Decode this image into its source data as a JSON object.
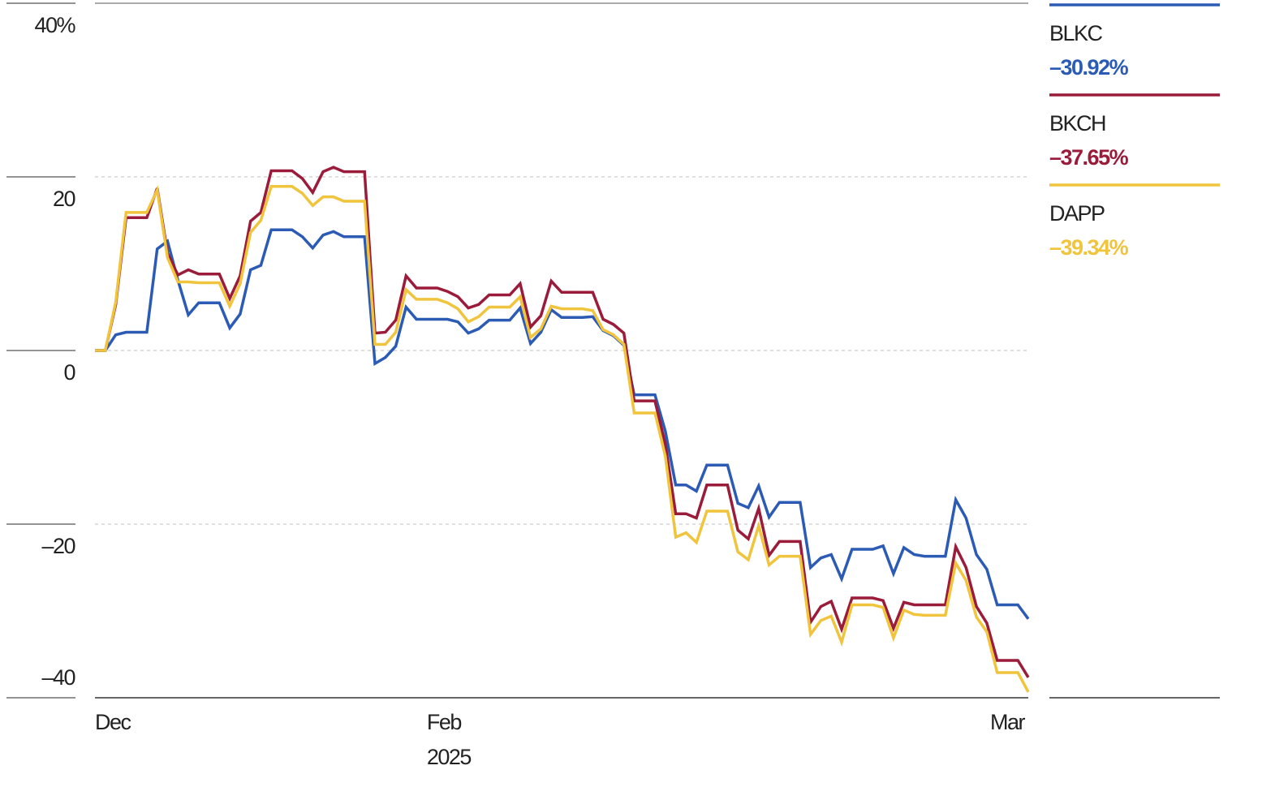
{
  "chart_data": {
    "type": "line",
    "categories": [
      "Dec",
      null,
      null,
      null,
      null,
      null,
      null,
      null,
      null,
      null,
      null,
      null,
      null,
      null,
      null,
      null,
      null,
      null,
      null,
      null,
      null,
      null,
      null,
      null,
      null,
      null,
      null,
      null,
      null,
      null,
      null,
      null,
      "Feb",
      null,
      null,
      null,
      null,
      null,
      null,
      null,
      null,
      null,
      null,
      null,
      null,
      null,
      null,
      null,
      null,
      null,
      null,
      null,
      null,
      null,
      null,
      null,
      null,
      null,
      null,
      null,
      null,
      null,
      null,
      null,
      null,
      null,
      null,
      null,
      null,
      null,
      null,
      null,
      null,
      null,
      null,
      null,
      null,
      null,
      null,
      null,
      null,
      null,
      null,
      null,
      null,
      null,
      null,
      null,
      null,
      null,
      "Mar"
    ],
    "year_label": "2025",
    "ylim": [
      -40,
      40
    ],
    "yticks": [
      {
        "value": 40,
        "label": "40%"
      },
      20,
      0,
      {
        "value": -20,
        "label": "–20"
      },
      {
        "value": -40,
        "label": "–40"
      }
    ],
    "grid": true,
    "legend": "right",
    "series": [
      {
        "name": "BLKC",
        "color": "#2b5bb5",
        "value_labels": {
          "90": "–30.92%"
        },
        "values": [
          0,
          0,
          1.8,
          2.1,
          2.1,
          2.1,
          11.7,
          12.6,
          8.1,
          4.1,
          5.5,
          5.5,
          5.5,
          2.6,
          4.2,
          9.3,
          9.8,
          13.9,
          13.9,
          13.9,
          13.1,
          11.8,
          13.3,
          13.7,
          13.1,
          13.1,
          13.1,
          -1.5,
          -0.8,
          0.5,
          5.0,
          3.6,
          3.6,
          3.6,
          3.6,
          3.3,
          2.0,
          2.5,
          3.5,
          3.5,
          3.5,
          4.9,
          0.8,
          2.1,
          4.7,
          3.8,
          3.8,
          3.8,
          3.9,
          2.3,
          1.7,
          0.6,
          -5.1,
          -5.1,
          -5.1,
          -9.3,
          -15.5,
          -15.5,
          -16.2,
          -13.2,
          -13.2,
          -13.2,
          -17.6,
          -18.1,
          -15.6,
          -19.2,
          -17.5,
          -17.5,
          -17.5,
          -25.0,
          -23.9,
          -23.5,
          -26.3,
          -22.9,
          -22.9,
          -22.9,
          -22.5,
          -25.7,
          -22.7,
          -23.5,
          -23.7,
          -23.7,
          -23.7,
          -17.2,
          -19.3,
          -23.5,
          -25.2,
          -29.3,
          -29.3,
          -29.3,
          -30.92
        ]
      },
      {
        "name": "BKCH",
        "color": "#9b1b3a",
        "value_labels": {
          "90": "–37.65%"
        },
        "values": [
          0,
          0,
          5.3,
          15.3,
          15.3,
          15.3,
          18.7,
          11.2,
          8.7,
          9.3,
          8.8,
          8.8,
          8.8,
          6.0,
          8.6,
          14.9,
          15.9,
          20.7,
          20.7,
          20.7,
          19.8,
          18.2,
          20.6,
          21.1,
          20.6,
          20.6,
          20.6,
          2.0,
          2.1,
          3.5,
          8.6,
          7.2,
          7.2,
          7.2,
          6.8,
          6.2,
          4.9,
          5.3,
          6.4,
          6.4,
          6.4,
          7.7,
          2.7,
          4.0,
          8.0,
          6.7,
          6.7,
          6.7,
          6.7,
          3.6,
          3.0,
          2.0,
          -5.8,
          -5.8,
          -5.8,
          -10.8,
          -18.8,
          -18.8,
          -19.3,
          -15.5,
          -15.5,
          -15.5,
          -20.7,
          -21.7,
          -18.2,
          -23.6,
          -22.0,
          -22.0,
          -22.0,
          -31.3,
          -29.5,
          -28.9,
          -32.1,
          -28.5,
          -28.5,
          -28.5,
          -28.8,
          -32.0,
          -29.0,
          -29.3,
          -29.3,
          -29.3,
          -29.3,
          -22.6,
          -25.0,
          -29.5,
          -31.4,
          -35.7,
          -35.7,
          -35.7,
          -37.65
        ]
      },
      {
        "name": "DAPP",
        "color": "#f0c43c",
        "value_labels": {
          "90": "–39.34%"
        },
        "values": [
          0,
          0,
          5.6,
          15.9,
          15.9,
          15.9,
          18.5,
          10.7,
          7.9,
          7.9,
          7.8,
          7.8,
          7.8,
          5.1,
          7.7,
          13.6,
          15.0,
          18.9,
          18.9,
          18.9,
          18.1,
          16.7,
          17.7,
          17.7,
          17.2,
          17.2,
          17.2,
          0.7,
          0.7,
          2.1,
          7.0,
          5.9,
          5.9,
          5.9,
          5.5,
          4.8,
          3.3,
          3.9,
          5.0,
          5.0,
          5.0,
          6.2,
          1.5,
          2.5,
          5.1,
          4.8,
          4.8,
          4.8,
          4.6,
          2.4,
          1.8,
          0.7,
          -7.2,
          -7.2,
          -7.2,
          -12.2,
          -21.5,
          -21.0,
          -22.1,
          -18.5,
          -18.5,
          -18.5,
          -23.2,
          -24.1,
          -20.2,
          -24.7,
          -23.7,
          -23.7,
          -23.7,
          -32.7,
          -31.1,
          -30.6,
          -33.6,
          -29.3,
          -29.3,
          -29.3,
          -29.6,
          -33.1,
          -29.9,
          -30.4,
          -30.5,
          -30.5,
          -30.5,
          -24.5,
          -26.5,
          -30.7,
          -32.4,
          -37.1,
          -37.1,
          -37.1,
          -39.34
        ]
      }
    ]
  }
}
